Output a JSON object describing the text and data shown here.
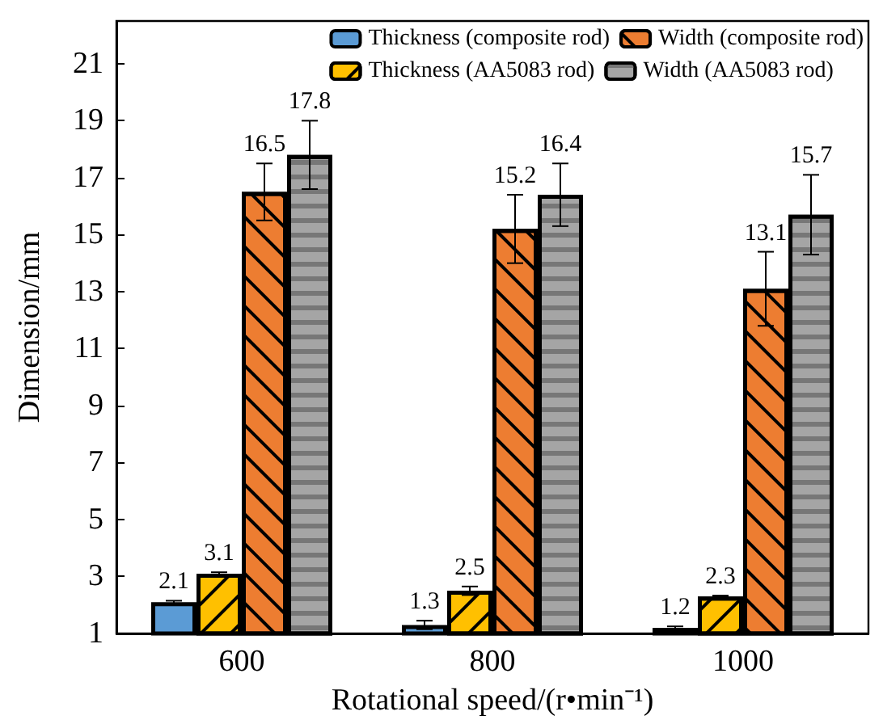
{
  "chart_data": {
    "type": "bar",
    "xlabel": "Rotational speed/(r•min⁻¹)",
    "ylabel": "Dimension/mm",
    "categories": [
      "600",
      "800",
      "1000"
    ],
    "series": [
      {
        "name": "Thickness (composite rod)",
        "color": "#5b9bd5",
        "values": [
          2.1,
          1.3,
          1.2
        ],
        "errors": [
          0.05,
          0.15,
          0.05
        ]
      },
      {
        "name": "Thickness (AA5083 rod)",
        "color": "#ffc000",
        "values": [
          3.1,
          2.5,
          2.3
        ],
        "errors": [
          0.05,
          0.15,
          0.03
        ]
      },
      {
        "name": "Width (composite rod)",
        "color": "#ed7d31",
        "values": [
          16.5,
          15.2,
          13.1
        ],
        "errors": [
          1,
          1.2,
          1.3
        ]
      },
      {
        "name": "Width (AA5083 rod)",
        "color": "#a5a5a5",
        "values": [
          17.8,
          16.4,
          15.7
        ],
        "errors": [
          [
            16.6,
            19.0
          ],
          1.1,
          1.4
        ]
      }
    ],
    "ylim": [
      1,
      22.5
    ],
    "yticks": [
      1,
      3,
      5,
      7,
      9,
      11,
      13,
      15,
      17,
      19,
      21
    ],
    "data_labels": true,
    "legend": "top right",
    "grid": false
  }
}
